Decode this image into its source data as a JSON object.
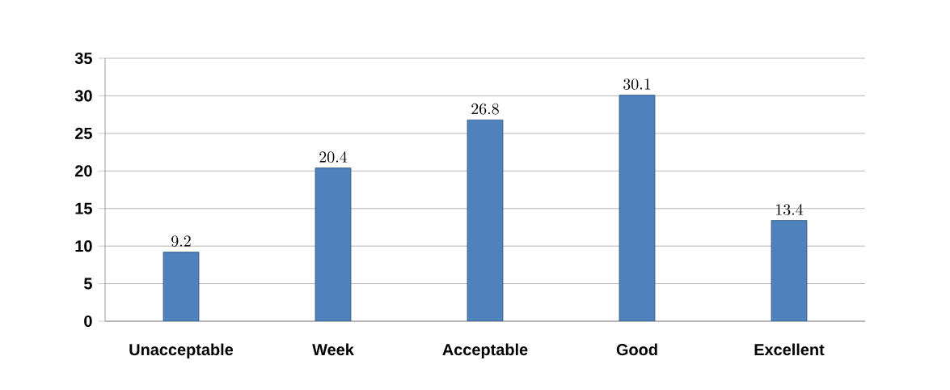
{
  "chart_data": {
    "type": "bar",
    "categories": [
      "Unacceptable",
      "Week",
      "Acceptable",
      "Good",
      "Excellent"
    ],
    "values": [
      9.2,
      20.4,
      26.8,
      30.1,
      13.4
    ],
    "color": "#4f81bd",
    "ylim": [
      0,
      35
    ],
    "yticks": [
      0,
      5,
      10,
      15,
      20,
      25,
      30,
      35
    ],
    "grid": "y",
    "data_labels": true
  }
}
